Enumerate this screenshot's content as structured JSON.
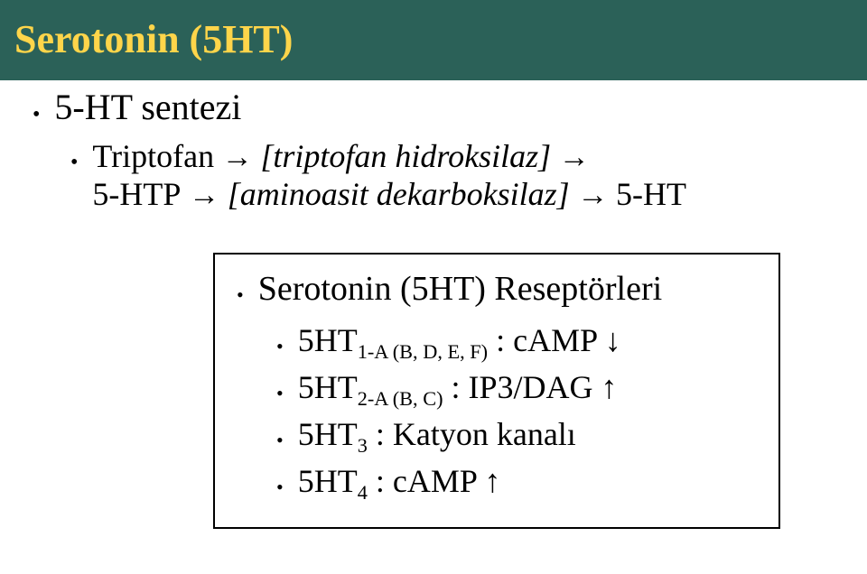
{
  "colors": {
    "title_bg": "#2b6158",
    "title_text": "#ffd54a",
    "body_text": "#000000",
    "bg": "#ffffff",
    "border": "#000000"
  },
  "title": "Serotonin (5HT)",
  "synthesis": {
    "heading": "5-HT sentezi",
    "step1_a": "Triptofan",
    "step1_arrow": " → ",
    "step1_b": "[triptofan hidroksilaz]",
    "step2_arrow_pre": " → ",
    "step2_a": "5-HTP",
    "step2_arrow_mid": " → ",
    "step2_b": "[aminoasit dekarboksilaz]",
    "step2_arrow_post": " → ",
    "step2_c": "5-HT"
  },
  "receptors": {
    "heading": "Serotonin (5HT) Reseptörleri",
    "rows": {
      "r1_main": "5HT",
      "r1_sub": "1-A (B, D, E, F)",
      "r1_tail": " : cAMP ↓",
      "r2_main": "5HT",
      "r2_sub": "2-A (B, C)",
      "r2_tail": " : IP3/DAG ↑",
      "r3_main": "5HT",
      "r3_sub": "3",
      "r3_tail": " : Katyon kanalı",
      "r4_main": "5HT",
      "r4_sub": "4",
      "r4_tail": " : cAMP ↑"
    }
  }
}
